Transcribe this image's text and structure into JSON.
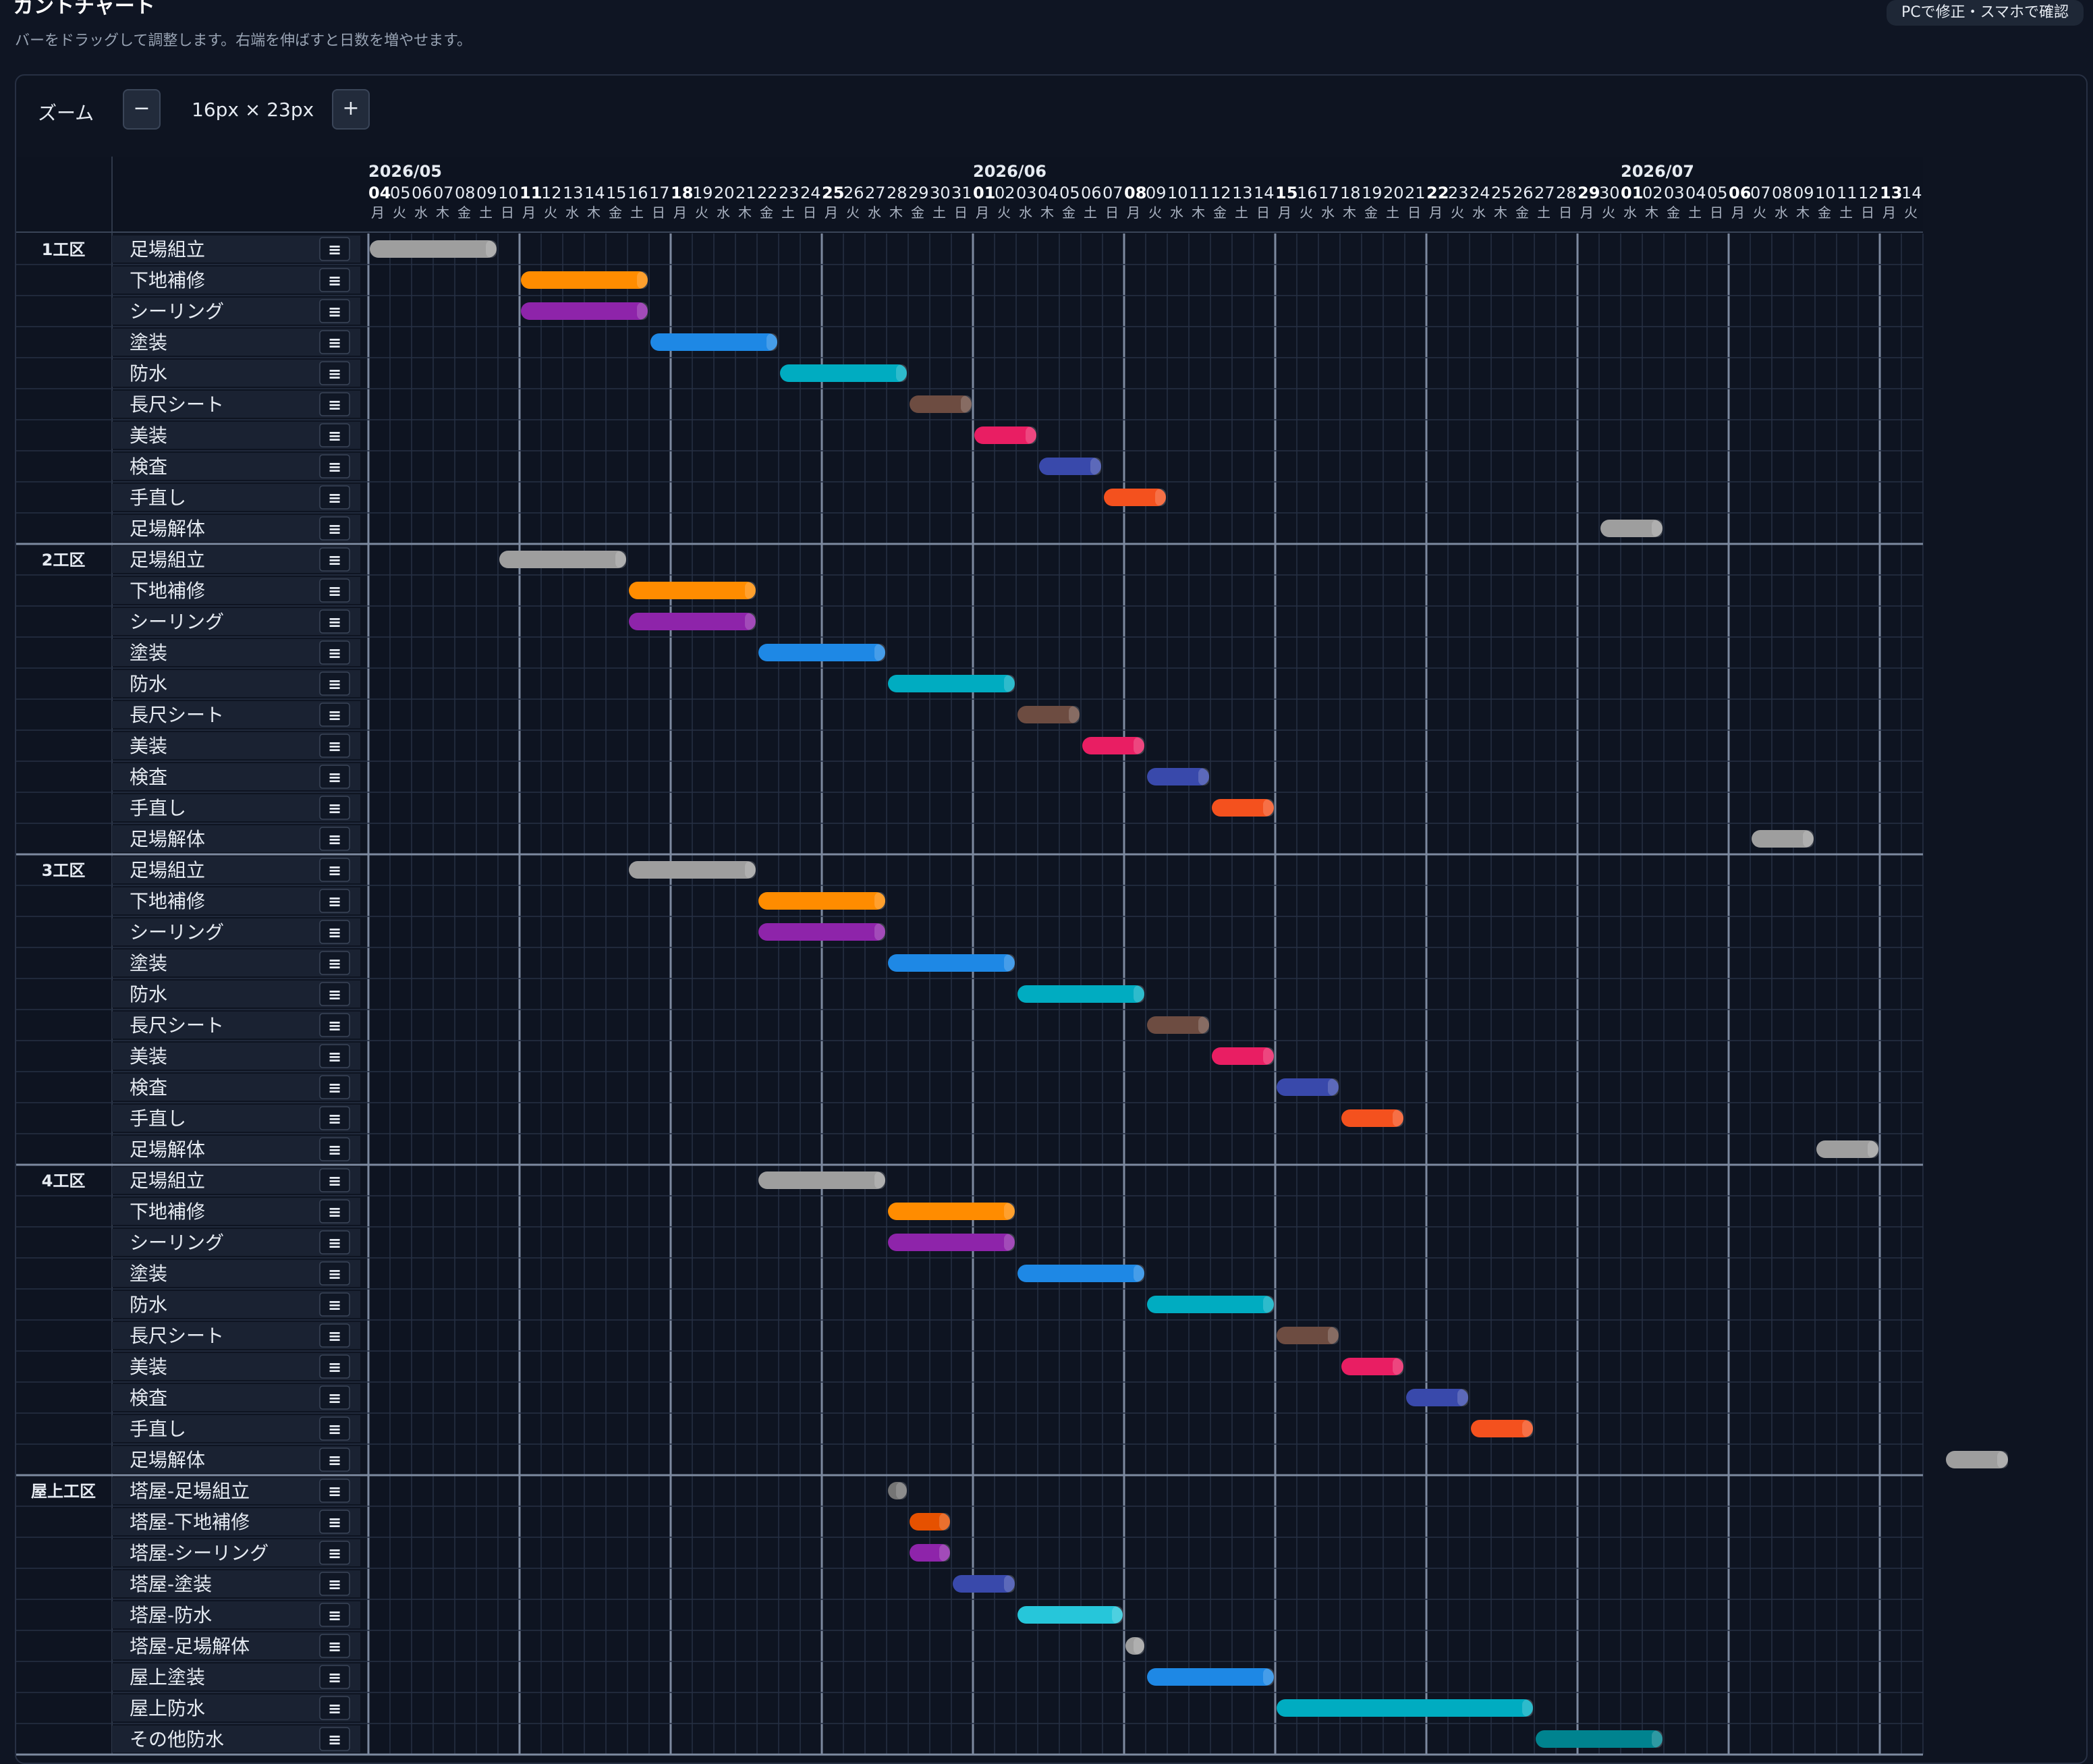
{
  "header": {
    "title": "ガントチャート",
    "subtitle": "バーをドラッグして調整します。右端を伸ばすと日数を増やせます。",
    "mobile_button": "PCで修正・スマホで確認"
  },
  "zoom": {
    "label": "ズーム",
    "minus": "−",
    "plus": "+",
    "value": "16px × 23px"
  },
  "timeline": {
    "start_date": "2026-05-04",
    "months": [
      "2026/05",
      "2026/06",
      "2026/07"
    ],
    "weekdays": [
      "月",
      "火",
      "水",
      "木",
      "金",
      "土",
      "日"
    ]
  },
  "menu_icon_glyph": "≡",
  "colors": {
    "足場組立": "#9e9e9e",
    "下地補修": "#ff8c00",
    "シーリング": "#8e24aa",
    "塗装": "#1e88e5",
    "防水": "#00acc1",
    "長尺シート": "#6d4c41",
    "美装": "#e91e63",
    "検査": "#3949ab",
    "手直し": "#f4511e",
    "足場解体": "#9e9e9e"
  },
  "sections": [
    {
      "name": "1工区",
      "tasks": [
        {
          "name": "足場組立",
          "start": "2026-05-04",
          "end": "2026-05-09",
          "color": "#9e9e9e"
        },
        {
          "name": "下地補修",
          "start": "2026-05-11",
          "end": "2026-05-16",
          "color": "#ff8c00"
        },
        {
          "name": "シーリング",
          "start": "2026-05-11",
          "end": "2026-05-16",
          "color": "#8e24aa"
        },
        {
          "name": "塗装",
          "start": "2026-05-17",
          "end": "2026-05-22",
          "color": "#1e88e5"
        },
        {
          "name": "防水",
          "start": "2026-05-23",
          "end": "2026-05-28",
          "color": "#00acc1"
        },
        {
          "name": "長尺シート",
          "start": "2026-05-29",
          "end": "2026-05-31",
          "color": "#6d4c41"
        },
        {
          "name": "美装",
          "start": "2026-06-01",
          "end": "2026-06-03",
          "color": "#e91e63"
        },
        {
          "name": "検査",
          "start": "2026-06-04",
          "end": "2026-06-06",
          "color": "#3949ab"
        },
        {
          "name": "手直し",
          "start": "2026-06-07",
          "end": "2026-06-09",
          "color": "#f4511e"
        },
        {
          "name": "足場解体",
          "start": "2026-06-30",
          "end": "2026-07-02",
          "color": "#9e9e9e"
        }
      ]
    },
    {
      "name": "2工区",
      "tasks": [
        {
          "name": "足場組立",
          "start": "2026-05-10",
          "end": "2026-05-15",
          "color": "#9e9e9e"
        },
        {
          "name": "下地補修",
          "start": "2026-05-16",
          "end": "2026-05-21",
          "color": "#ff8c00"
        },
        {
          "name": "シーリング",
          "start": "2026-05-16",
          "end": "2026-05-21",
          "color": "#8e24aa"
        },
        {
          "name": "塗装",
          "start": "2026-05-22",
          "end": "2026-05-27",
          "color": "#1e88e5"
        },
        {
          "name": "防水",
          "start": "2026-05-28",
          "end": "2026-06-02",
          "color": "#00acc1"
        },
        {
          "name": "長尺シート",
          "start": "2026-06-03",
          "end": "2026-06-05",
          "color": "#6d4c41"
        },
        {
          "name": "美装",
          "start": "2026-06-06",
          "end": "2026-06-08",
          "color": "#e91e63"
        },
        {
          "name": "検査",
          "start": "2026-06-09",
          "end": "2026-06-11",
          "color": "#3949ab"
        },
        {
          "name": "手直し",
          "start": "2026-06-12",
          "end": "2026-06-14",
          "color": "#f4511e"
        },
        {
          "name": "足場解体",
          "start": "2026-07-07",
          "end": "2026-07-09",
          "color": "#9e9e9e"
        }
      ]
    },
    {
      "name": "3工区",
      "tasks": [
        {
          "name": "足場組立",
          "start": "2026-05-16",
          "end": "2026-05-21",
          "color": "#9e9e9e"
        },
        {
          "name": "下地補修",
          "start": "2026-05-22",
          "end": "2026-05-27",
          "color": "#ff8c00"
        },
        {
          "name": "シーリング",
          "start": "2026-05-22",
          "end": "2026-05-27",
          "color": "#8e24aa"
        },
        {
          "name": "塗装",
          "start": "2026-05-28",
          "end": "2026-06-02",
          "color": "#1e88e5"
        },
        {
          "name": "防水",
          "start": "2026-06-03",
          "end": "2026-06-08",
          "color": "#00acc1"
        },
        {
          "name": "長尺シート",
          "start": "2026-06-09",
          "end": "2026-06-11",
          "color": "#6d4c41"
        },
        {
          "name": "美装",
          "start": "2026-06-12",
          "end": "2026-06-14",
          "color": "#e91e63"
        },
        {
          "name": "検査",
          "start": "2026-06-15",
          "end": "2026-06-17",
          "color": "#3949ab"
        },
        {
          "name": "手直し",
          "start": "2026-06-18",
          "end": "2026-06-20",
          "color": "#f4511e"
        },
        {
          "name": "足場解体",
          "start": "2026-07-10",
          "end": "2026-07-12",
          "color": "#9e9e9e"
        }
      ]
    },
    {
      "name": "4工区",
      "tasks": [
        {
          "name": "足場組立",
          "start": "2026-05-22",
          "end": "2026-05-27",
          "color": "#9e9e9e"
        },
        {
          "name": "下地補修",
          "start": "2026-05-28",
          "end": "2026-06-02",
          "color": "#ff8c00"
        },
        {
          "name": "シーリング",
          "start": "2026-05-28",
          "end": "2026-06-02",
          "color": "#8e24aa"
        },
        {
          "name": "塗装",
          "start": "2026-06-03",
          "end": "2026-06-08",
          "color": "#1e88e5"
        },
        {
          "name": "防水",
          "start": "2026-06-09",
          "end": "2026-06-14",
          "color": "#00acc1"
        },
        {
          "name": "長尺シート",
          "start": "2026-06-15",
          "end": "2026-06-17",
          "color": "#6d4c41"
        },
        {
          "name": "美装",
          "start": "2026-06-18",
          "end": "2026-06-20",
          "color": "#e91e63"
        },
        {
          "name": "検査",
          "start": "2026-06-21",
          "end": "2026-06-23",
          "color": "#3949ab"
        },
        {
          "name": "手直し",
          "start": "2026-06-24",
          "end": "2026-06-26",
          "color": "#f4511e"
        },
        {
          "name": "足場解体",
          "start": "2026-07-16",
          "end": "2026-07-18",
          "color": "#9e9e9e"
        }
      ]
    },
    {
      "name": "屋上工区",
      "tasks": [
        {
          "name": "塔屋-足場組立",
          "start": "2026-05-28",
          "end": "2026-05-28",
          "color": "#757575"
        },
        {
          "name": "塔屋-下地補修",
          "start": "2026-05-29",
          "end": "2026-05-30",
          "color": "#e65100"
        },
        {
          "name": "塔屋-シーリング",
          "start": "2026-05-29",
          "end": "2026-05-30",
          "color": "#8e24aa"
        },
        {
          "name": "塔屋-塗装",
          "start": "2026-05-31",
          "end": "2026-06-02",
          "color": "#3949ab"
        },
        {
          "name": "塔屋-防水",
          "start": "2026-06-03",
          "end": "2026-06-07",
          "color": "#26c6da"
        },
        {
          "name": "塔屋-足場解体",
          "start": "2026-06-08",
          "end": "2026-06-08",
          "color": "#9e9e9e"
        },
        {
          "name": "屋上塗装",
          "start": "2026-06-09",
          "end": "2026-06-14",
          "color": "#1e88e5"
        },
        {
          "name": "屋上防水",
          "start": "2026-06-15",
          "end": "2026-06-26",
          "color": "#00acc1"
        },
        {
          "name": "その他防水",
          "start": "2026-06-27",
          "end": "2026-07-02",
          "color": "#00838f"
        }
      ]
    }
  ]
}
